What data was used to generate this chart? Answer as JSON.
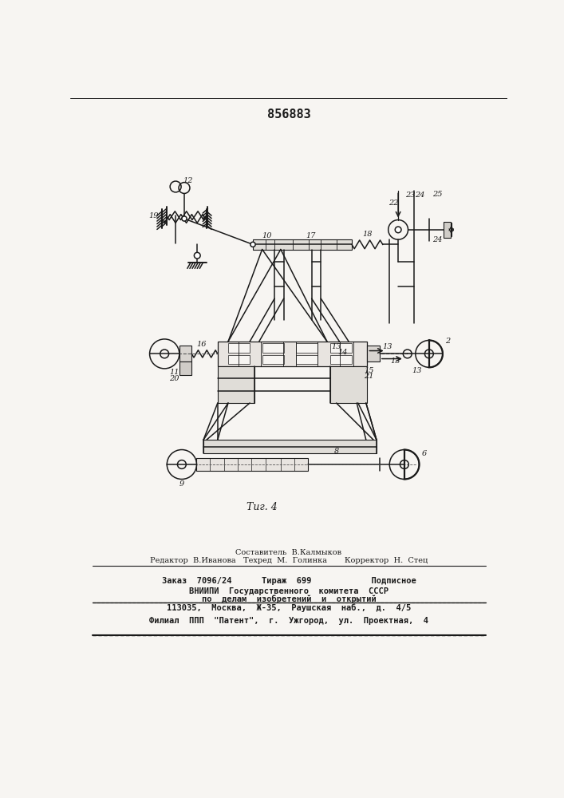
{
  "title": "856883",
  "fig_label": "Τиг. 4",
  "background_color": "#f7f5f2",
  "line_color": "#1a1a1a",
  "text_color": "#1a1a1a",
  "footer_line1": "Составитель  В.Калмыков",
  "footer_line2": "Редактор  В.Иванова   Техред  М.  Голинка       Корректор  Н.  Стец",
  "footer_line3": "Заказ  7096/24      Тираж  699            Подписное",
  "footer_line4": "ВНИИПИ  Государственного  комитета  СССР",
  "footer_line5": "по  делам  изобретений  и  открытий",
  "footer_line6": "113035,  Москва,  Ж-35,  Раушская  наб.,  д.  4/5",
  "footer_line7": "Филиал  ППП  \"Патент\",  г.  Ужгород,  ул.  Проектная,  4"
}
